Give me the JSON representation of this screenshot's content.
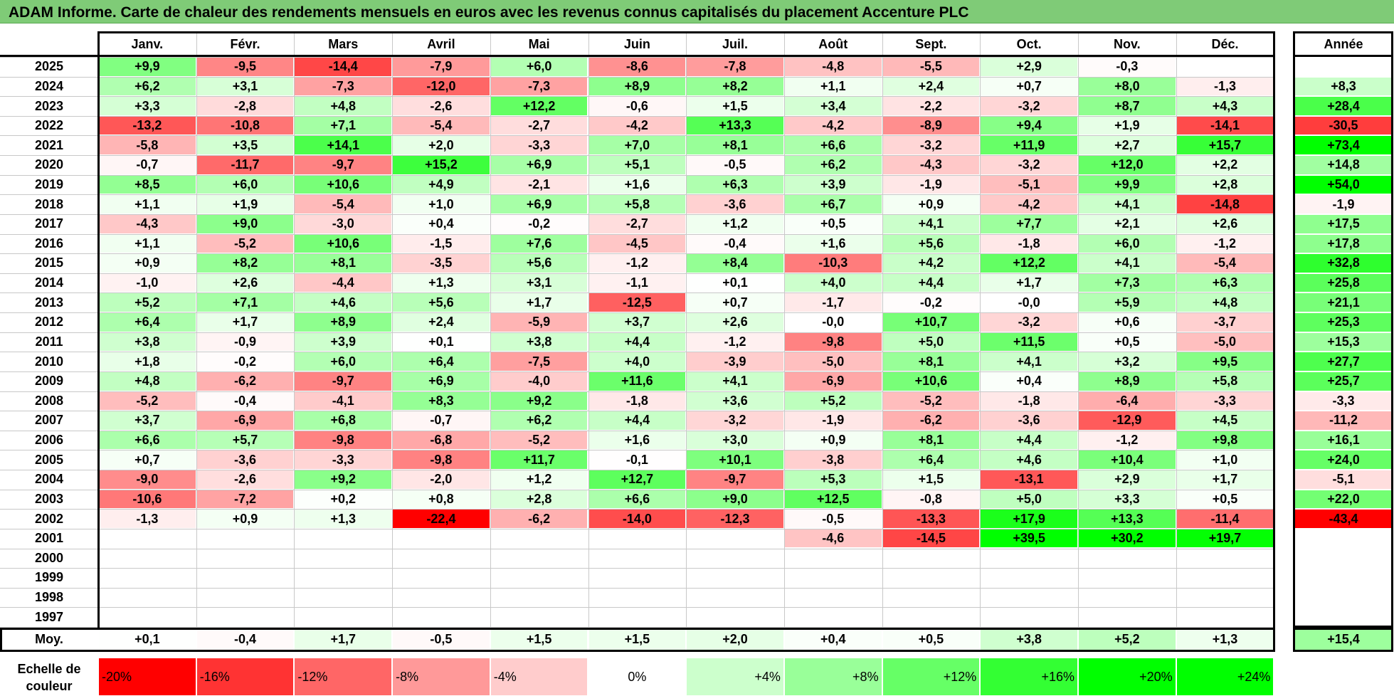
{
  "title": "ADAM Informe. Carte de chaleur des rendements mensuels en euros avec les revenus connus capitalisés du placement Accenture PLC",
  "chart_data": {
    "type": "heatmap",
    "title": "ADAM Informe. Carte de chaleur des rendements mensuels en euros avec les revenus connus capitalisés du placement Accenture PLC",
    "columns": [
      "Janv.",
      "Févr.",
      "Mars",
      "Avril",
      "Mai",
      "Juin",
      "Juil.",
      "Août",
      "Sept.",
      "Oct.",
      "Nov.",
      "Déc."
    ],
    "year_column_label": "Année",
    "rows": [
      {
        "year": "2025",
        "months": [
          "+9,9",
          "-9,5",
          "-14,4",
          "-7,9",
          "+6,0",
          "-8,6",
          "-7,8",
          "-4,8",
          "-5,5",
          "+2,9",
          "-0,3",
          ""
        ],
        "annual": ""
      },
      {
        "year": "2024",
        "months": [
          "+6,2",
          "+3,1",
          "-7,3",
          "-12,0",
          "-7,3",
          "+8,9",
          "+8,2",
          "+1,1",
          "+2,4",
          "+0,7",
          "+8,0",
          "-1,3"
        ],
        "annual": "+8,3"
      },
      {
        "year": "2023",
        "months": [
          "+3,3",
          "-2,8",
          "+4,8",
          "-2,6",
          "+12,2",
          "-0,6",
          "+1,5",
          "+3,4",
          "-2,2",
          "-3,2",
          "+8,7",
          "+4,3"
        ],
        "annual": "+28,4"
      },
      {
        "year": "2022",
        "months": [
          "-13,2",
          "-10,8",
          "+7,1",
          "-5,4",
          "-2,7",
          "-4,2",
          "+13,3",
          "-4,2",
          "-8,9",
          "+9,4",
          "+1,9",
          "-14,1"
        ],
        "annual": "-30,5"
      },
      {
        "year": "2021",
        "months": [
          "-5,8",
          "+3,5",
          "+14,1",
          "+2,0",
          "-3,3",
          "+7,0",
          "+8,1",
          "+6,6",
          "-3,2",
          "+11,9",
          "+2,7",
          "+15,7"
        ],
        "annual": "+73,4"
      },
      {
        "year": "2020",
        "months": [
          "-0,7",
          "-11,7",
          "-9,7",
          "+15,2",
          "+6,9",
          "+5,1",
          "-0,5",
          "+6,2",
          "-4,3",
          "-3,2",
          "+12,0",
          "+2,2"
        ],
        "annual": "+14,8"
      },
      {
        "year": "2019",
        "months": [
          "+8,5",
          "+6,0",
          "+10,6",
          "+4,9",
          "-2,1",
          "+1,6",
          "+6,3",
          "+3,9",
          "-1,9",
          "-5,1",
          "+9,9",
          "+2,8"
        ],
        "annual": "+54,0"
      },
      {
        "year": "2018",
        "months": [
          "+1,1",
          "+1,9",
          "-5,4",
          "+1,0",
          "+6,9",
          "+5,8",
          "-3,6",
          "+6,7",
          "+0,9",
          "-4,2",
          "+4,1",
          "-14,8"
        ],
        "annual": "-1,9"
      },
      {
        "year": "2017",
        "months": [
          "-4,3",
          "+9,0",
          "-3,0",
          "+0,4",
          "-0,2",
          "-2,7",
          "+1,2",
          "+0,5",
          "+4,1",
          "+7,7",
          "+2,1",
          "+2,6"
        ],
        "annual": "+17,5"
      },
      {
        "year": "2016",
        "months": [
          "+1,1",
          "-5,2",
          "+10,6",
          "-1,5",
          "+7,6",
          "-4,5",
          "-0,4",
          "+1,6",
          "+5,6",
          "-1,8",
          "+6,0",
          "-1,2"
        ],
        "annual": "+17,8"
      },
      {
        "year": "2015",
        "months": [
          "+0,9",
          "+8,2",
          "+8,1",
          "-3,5",
          "+5,6",
          "-1,2",
          "+8,4",
          "-10,3",
          "+4,2",
          "+12,2",
          "+4,1",
          "-5,4"
        ],
        "annual": "+32,8"
      },
      {
        "year": "2014",
        "months": [
          "-1,0",
          "+2,6",
          "-4,4",
          "+1,3",
          "+3,1",
          "-1,1",
          "+0,1",
          "+4,0",
          "+4,4",
          "+1,7",
          "+7,3",
          "+6,3"
        ],
        "annual": "+25,8"
      },
      {
        "year": "2013",
        "months": [
          "+5,2",
          "+7,1",
          "+4,6",
          "+5,6",
          "+1,7",
          "-12,5",
          "+0,7",
          "-1,7",
          "-0,2",
          "-0,0",
          "+5,9",
          "+4,8"
        ],
        "annual": "+21,1"
      },
      {
        "year": "2012",
        "months": [
          "+6,4",
          "+1,7",
          "+8,9",
          "+2,4",
          "-5,9",
          "+3,7",
          "+2,6",
          "-0,0",
          "+10,7",
          "-3,2",
          "+0,6",
          "-3,7"
        ],
        "annual": "+25,3"
      },
      {
        "year": "2011",
        "months": [
          "+3,8",
          "-0,9",
          "+3,9",
          "+0,1",
          "+3,8",
          "+4,4",
          "-1,2",
          "-9,8",
          "+5,0",
          "+11,5",
          "+0,5",
          "-5,0"
        ],
        "annual": "+15,3"
      },
      {
        "year": "2010",
        "months": [
          "+1,8",
          "-0,2",
          "+6,0",
          "+6,4",
          "-7,5",
          "+4,0",
          "-3,9",
          "-5,0",
          "+8,1",
          "+4,1",
          "+3,2",
          "+9,5"
        ],
        "annual": "+27,7"
      },
      {
        "year": "2009",
        "months": [
          "+4,8",
          "-6,2",
          "-9,7",
          "+6,9",
          "-4,0",
          "+11,6",
          "+4,1",
          "-6,9",
          "+10,6",
          "+0,4",
          "+8,9",
          "+5,8"
        ],
        "annual": "+25,7"
      },
      {
        "year": "2008",
        "months": [
          "-5,2",
          "-0,4",
          "-4,1",
          "+8,3",
          "+9,2",
          "-1,8",
          "+3,6",
          "+5,2",
          "-5,2",
          "-1,8",
          "-6,4",
          "-3,3"
        ],
        "annual": "-3,3"
      },
      {
        "year": "2007",
        "months": [
          "+3,7",
          "-6,9",
          "+6,8",
          "-0,7",
          "+6,2",
          "+4,4",
          "-3,2",
          "-1,9",
          "-6,2",
          "-3,6",
          "-12,9",
          "+4,5"
        ],
        "annual": "-11,2"
      },
      {
        "year": "2006",
        "months": [
          "+6,6",
          "+5,7",
          "-9,8",
          "-6,8",
          "-5,2",
          "+1,6",
          "+3,0",
          "+0,9",
          "+8,1",
          "+4,4",
          "-1,2",
          "+9,8"
        ],
        "annual": "+16,1"
      },
      {
        "year": "2005",
        "months": [
          "+0,7",
          "-3,6",
          "-3,3",
          "-9,8",
          "+11,7",
          "-0,1",
          "+10,1",
          "-3,8",
          "+6,4",
          "+4,6",
          "+10,4",
          "+1,0"
        ],
        "annual": "+24,0"
      },
      {
        "year": "2004",
        "months": [
          "-9,0",
          "-2,6",
          "+9,2",
          "-2,0",
          "+1,2",
          "+12,7",
          "-9,7",
          "+5,3",
          "+1,5",
          "-13,1",
          "+2,9",
          "+1,7"
        ],
        "annual": "-5,1"
      },
      {
        "year": "2003",
        "months": [
          "-10,6",
          "-7,2",
          "+0,2",
          "+0,8",
          "+2,8",
          "+6,6",
          "+9,0",
          "+12,5",
          "-0,8",
          "+5,0",
          "+3,3",
          "+0,5"
        ],
        "annual": "+22,0"
      },
      {
        "year": "2002",
        "months": [
          "-1,3",
          "+0,9",
          "+1,3",
          "-22,4",
          "-6,2",
          "-14,0",
          "-12,3",
          "-0,5",
          "-13,3",
          "+17,9",
          "+13,3",
          "-11,4"
        ],
        "annual": "-43,4"
      },
      {
        "year": "2001",
        "months": [
          "",
          "",
          "",
          "",
          "",
          "",
          "",
          "-4,6",
          "-14,5",
          "+39,5",
          "+30,2",
          "+19,7"
        ],
        "annual": ""
      },
      {
        "year": "2000",
        "months": [
          "",
          "",
          "",
          "",
          "",
          "",
          "",
          "",
          "",
          "",
          "",
          ""
        ],
        "annual": ""
      },
      {
        "year": "1999",
        "months": [
          "",
          "",
          "",
          "",
          "",
          "",
          "",
          "",
          "",
          "",
          "",
          ""
        ],
        "annual": ""
      },
      {
        "year": "1998",
        "months": [
          "",
          "",
          "",
          "",
          "",
          "",
          "",
          "",
          "",
          "",
          "",
          ""
        ],
        "annual": ""
      },
      {
        "year": "1997",
        "months": [
          "",
          "",
          "",
          "",
          "",
          "",
          "",
          "",
          "",
          "",
          "",
          ""
        ],
        "annual": ""
      }
    ],
    "average": {
      "label": "Moy.",
      "months": [
        "+0,1",
        "-0,4",
        "+1,7",
        "-0,5",
        "+1,5",
        "+1,5",
        "+2,0",
        "+0,4",
        "+0,5",
        "+3,8",
        "+5,2",
        "+1,3"
      ],
      "annual": "+15,4"
    },
    "color_scale": {
      "label_line1": "Echelle de",
      "label_line2": "couleur",
      "steps": [
        "-20%",
        "-16%",
        "-12%",
        "-8%",
        "-4%",
        "0%",
        "+4%",
        "+8%",
        "+12%",
        "+16%",
        "+20%",
        "+24%"
      ],
      "negative_color": "#ff0000",
      "neutral_color": "#ffffff",
      "positive_color": "#00ff00"
    }
  }
}
